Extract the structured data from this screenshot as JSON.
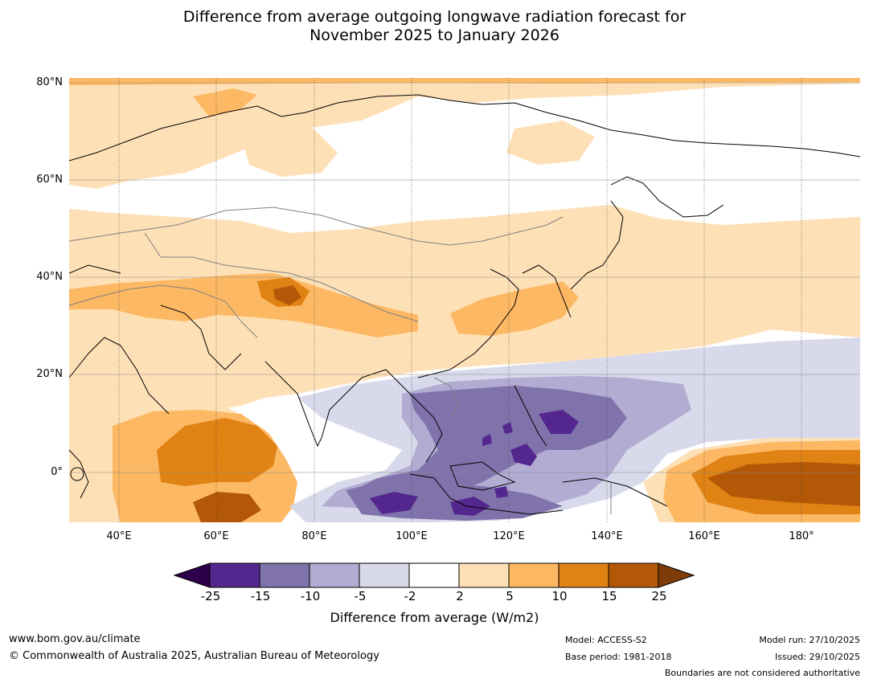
{
  "title": {
    "line1": "Difference from average outgoing longwave radiation forecast for",
    "line2": "November 2025 to January 2026"
  },
  "axes": {
    "lat_labels": [
      "80°N",
      "60°N",
      "40°N",
      "20°N",
      "0°"
    ],
    "lon_labels": [
      "40°E",
      "60°E",
      "80°E",
      "100°E",
      "120°E",
      "140°E",
      "160°E",
      "180°"
    ]
  },
  "colorbar": {
    "title": "Difference from average (W/m2)",
    "ticks": [
      "-25",
      "-15",
      "-10",
      "-5",
      "-2",
      "2",
      "5",
      "10",
      "15",
      "25"
    ],
    "colors": [
      "#54278f",
      "#8073ac",
      "#b2abd2",
      "#d8daeb",
      "#ffffff",
      "#fee0b6",
      "#fdb863",
      "#e08214",
      "#b35806"
    ],
    "under_color": "#2d004b",
    "over_color": "#7f3b08"
  },
  "footer": {
    "website": "www.bom.gov.au/climate",
    "copyright": "© Commonwealth of Australia 2025, Australian Bureau of Meteorology",
    "model": "Model: ACCESS-S2",
    "base_period": "Base period: 1981-2018",
    "model_run": "Model run: 27/10/2025",
    "issued": "Issued: 29/10/2025",
    "disclaimer": "Boundaries are not considered authoritative"
  }
}
